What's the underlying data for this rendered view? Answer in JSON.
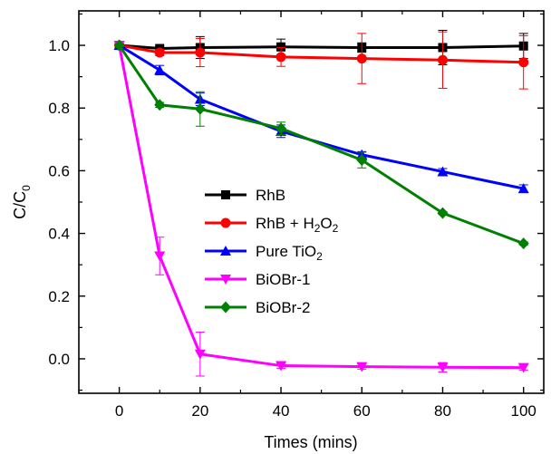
{
  "chart_data": {
    "type": "line",
    "xlabel": "Times (mins)",
    "ylabel": {
      "base": "C/C",
      "sub": "0"
    },
    "xlim": [
      -10,
      105
    ],
    "ylim": [
      -0.11,
      1.11
    ],
    "xticks": [
      "0",
      "20",
      "40",
      "60",
      "80",
      "100"
    ],
    "yticks": [
      "0.0",
      "0.2",
      "0.4",
      "0.6",
      "0.8",
      "1.0"
    ],
    "x": [
      0,
      10,
      20,
      40,
      60,
      80,
      100
    ],
    "legend_position": "center-right",
    "series": [
      {
        "name": "RhB",
        "legend": {
          "base": "RhB",
          "sub": "",
          "suffix": ""
        },
        "color": "#000000",
        "marker": "square",
        "values": [
          1.0,
          0.99,
          0.993,
          0.995,
          0.993,
          0.993,
          0.998
        ],
        "errors": [
          0,
          0.005,
          0.035,
          0.025,
          0.015,
          0.055,
          0.04
        ]
      },
      {
        "name": "RhB + H2O2",
        "legend": {
          "base": "RhB + H",
          "sub": "2",
          "suffix": "O",
          "sub2": "2"
        },
        "color": "#ff0000",
        "marker": "circle",
        "values": [
          1.0,
          0.977,
          0.977,
          0.963,
          0.958,
          0.953,
          0.946
        ],
        "errors": [
          0,
          0.01,
          0.045,
          0.03,
          0.08,
          0.09,
          0.085
        ]
      },
      {
        "name": "Pure TiO2",
        "legend": {
          "base": "Pure TiO",
          "sub": "2",
          "suffix": ""
        },
        "color": "#0000ff",
        "marker": "triangle-up",
        "values": [
          1.0,
          0.921,
          0.828,
          0.726,
          0.651,
          0.597,
          0.543
        ],
        "errors": [
          0,
          0.015,
          0.02,
          0.02,
          0.01,
          0.01,
          0.012
        ]
      },
      {
        "name": "BiOBr-1",
        "legend": {
          "base": "BiOBr-1",
          "sub": "",
          "suffix": ""
        },
        "color": "#ff00ff",
        "marker": "triangle-down",
        "values": [
          1.0,
          0.328,
          0.015,
          -0.022,
          -0.025,
          -0.027,
          -0.028
        ],
        "errors": [
          0,
          0.06,
          0.07,
          0.008,
          0.008,
          0.015,
          0.008
        ]
      },
      {
        "name": "BiOBr-2",
        "legend": {
          "base": "BiOBr-2",
          "sub": "",
          "suffix": ""
        },
        "color": "#008000",
        "marker": "diamond",
        "values": [
          1.0,
          0.81,
          0.797,
          0.735,
          0.634,
          0.465,
          0.368
        ],
        "errors": [
          0,
          0.008,
          0.055,
          0.02,
          0.025,
          0.005,
          0.005
        ]
      }
    ]
  }
}
